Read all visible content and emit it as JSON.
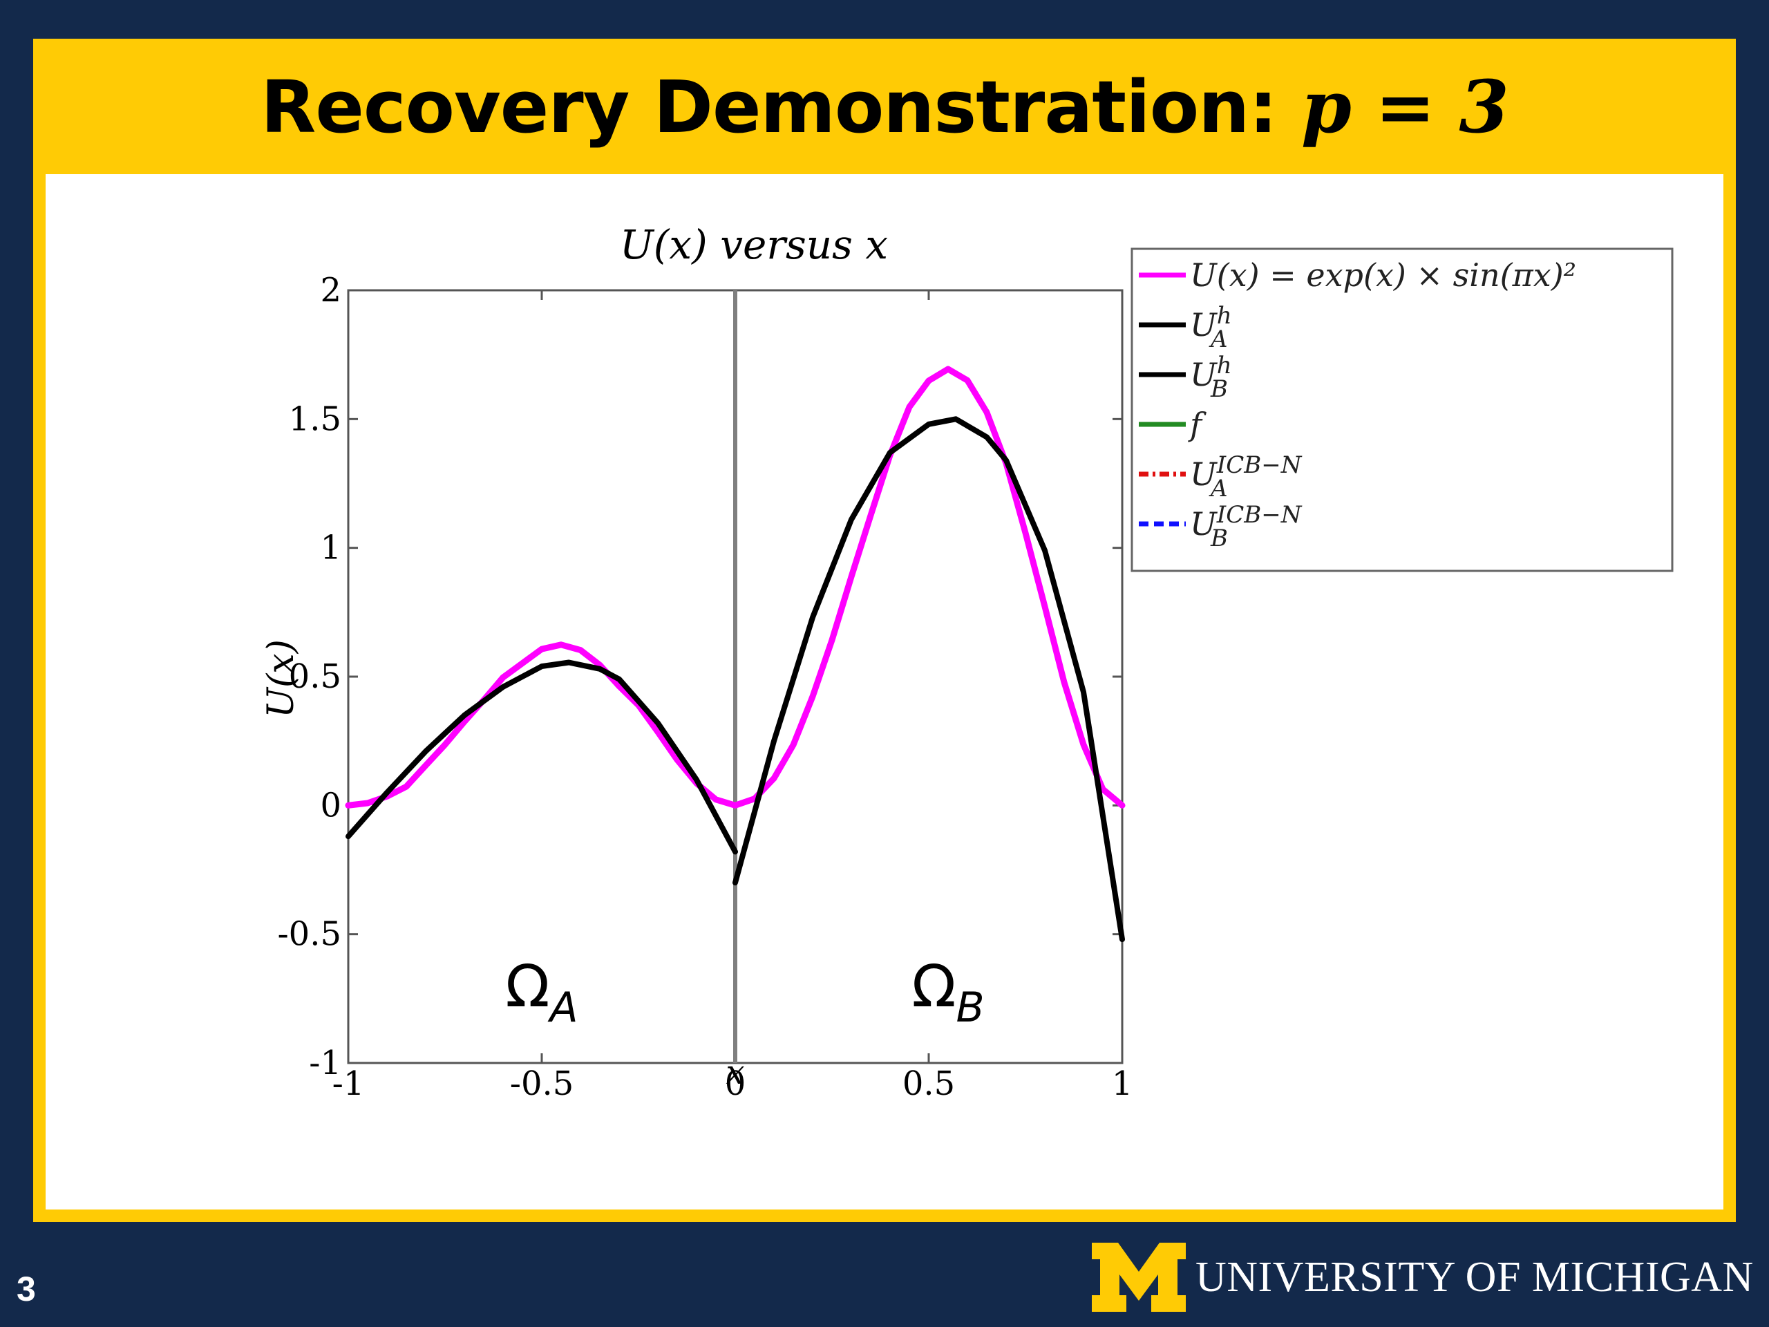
{
  "slide": {
    "title_text": "Recovery Demonstration: ",
    "title_math": "p = 3",
    "number": "3",
    "logo_text": "UNIVERSITY OF MICHIGAN"
  },
  "colors": {
    "background": "#13294b",
    "accent": "#ffcb05",
    "magenta": "#ff00ff",
    "black": "#000000",
    "green": "#228b22",
    "red": "#e01010",
    "blue": "#1010ff",
    "divider": "#7f7f7f"
  },
  "chart_data": {
    "type": "line",
    "title": "U(x) versus x",
    "xlabel": "x",
    "ylabel": "U(x)",
    "xlim": [
      -1,
      1
    ],
    "ylim": [
      -1,
      2
    ],
    "xticks": [
      -1,
      -0.5,
      0,
      0.5,
      1
    ],
    "xtick_labels": [
      "-1",
      "-0.5",
      "0",
      "0.5",
      "1"
    ],
    "yticks": [
      -1,
      -0.5,
      0,
      0.5,
      1,
      1.5,
      2
    ],
    "ytick_labels": [
      "-1",
      "-0.5",
      "0",
      "0.5",
      "1",
      "1.5",
      "2"
    ],
    "grid": false,
    "legend_position": "outside-top-right",
    "legend": [
      {
        "text": "U(x) = exp(x) × sin(πx)²",
        "color": "#ff00ff",
        "style": "solid"
      },
      {
        "text": "U_A^h",
        "color": "#000000",
        "style": "solid"
      },
      {
        "text": "U_B^h",
        "color": "#000000",
        "style": "solid"
      },
      {
        "text": "f",
        "color": "#228b22",
        "style": "solid"
      },
      {
        "text": "U_A^ICB−N",
        "color": "#e01010",
        "style": "dashdot"
      },
      {
        "text": "U_B^ICB−N",
        "color": "#1010ff",
        "style": "dashed"
      }
    ],
    "annotations": [
      {
        "text": "Ω_A",
        "x": -0.5,
        "y": -0.78
      },
      {
        "text": "Ω_B",
        "x": 0.55,
        "y": -0.78
      }
    ],
    "divider_x": 0,
    "series": [
      {
        "name": "U(x) = exp(x) × sin(πx)²",
        "color": "#ff00ff",
        "x": [
          -1.0,
          -0.95,
          -0.9,
          -0.85,
          -0.8,
          -0.75,
          -0.7,
          -0.65,
          -0.6,
          -0.55,
          -0.5,
          -0.45,
          -0.4,
          -0.35,
          -0.3,
          -0.25,
          -0.2,
          -0.15,
          -0.1,
          -0.05,
          0.0,
          0.05,
          0.1,
          0.15,
          0.2,
          0.25,
          0.3,
          0.35,
          0.4,
          0.45,
          0.5,
          0.55,
          0.6,
          0.65,
          0.7,
          0.75,
          0.8,
          0.85,
          0.9,
          0.95,
          1.0
        ],
        "y": [
          0.0,
          0.009,
          0.035,
          0.073,
          0.155,
          0.236,
          0.325,
          0.409,
          0.497,
          0.552,
          0.607,
          0.624,
          0.603,
          0.545,
          0.463,
          0.389,
          0.285,
          0.177,
          0.086,
          0.023,
          0.0,
          0.026,
          0.105,
          0.235,
          0.423,
          0.642,
          0.888,
          1.126,
          1.36,
          1.547,
          1.649,
          1.694,
          1.65,
          1.526,
          1.328,
          1.058,
          0.772,
          0.478,
          0.236,
          0.063,
          0.0
        ]
      },
      {
        "name": "U_A^h",
        "color": "#000000",
        "x": [
          -1.0,
          -0.9,
          -0.8,
          -0.7,
          -0.6,
          -0.5,
          -0.43,
          -0.35,
          -0.3,
          -0.2,
          -0.1,
          0.0
        ],
        "y": [
          -0.12,
          0.05,
          0.21,
          0.35,
          0.46,
          0.54,
          0.555,
          0.53,
          0.49,
          0.32,
          0.1,
          -0.18
        ]
      },
      {
        "name": "U_B^h",
        "color": "#000000",
        "x": [
          0.0,
          0.1,
          0.2,
          0.3,
          0.4,
          0.5,
          0.57,
          0.65,
          0.7,
          0.8,
          0.9,
          1.0
        ],
        "y": [
          -0.3,
          0.25,
          0.73,
          1.11,
          1.37,
          1.48,
          1.5,
          1.43,
          1.34,
          0.99,
          0.44,
          -0.52
        ]
      }
    ]
  }
}
